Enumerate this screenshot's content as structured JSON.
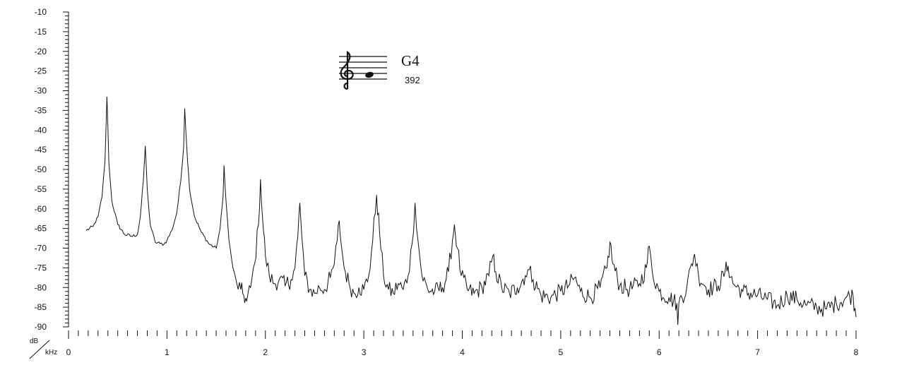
{
  "note": {
    "name": "G4",
    "frequency_hz": "392",
    "icon": "treble-clef-staff-icon"
  },
  "chart_data": {
    "type": "line",
    "title": "",
    "xlabel": "kHz",
    "ylabel": "dB",
    "xlim": [
      0,
      8
    ],
    "ylim": [
      -90,
      -10
    ],
    "x_tick_labels": [
      "0",
      "1",
      "2",
      "3",
      "4",
      "5",
      "6",
      "7",
      "8"
    ],
    "y_tick_labels": [
      "-10",
      "-15",
      "-20",
      "-25",
      "-30",
      "-35",
      "-40",
      "-45",
      "-50",
      "-55",
      "-60",
      "-65",
      "-70",
      "-75",
      "-80",
      "-85",
      "-90"
    ],
    "grid": false,
    "series": [
      {
        "name": "",
        "color": "#111111",
        "points": [
          [
            0.18,
            -65.5
          ],
          [
            0.25,
            -64.5
          ],
          [
            0.3,
            -62
          ],
          [
            0.34,
            -57
          ],
          [
            0.37,
            -48
          ],
          [
            0.39,
            -31.5
          ],
          [
            0.41,
            -48
          ],
          [
            0.44,
            -58
          ],
          [
            0.5,
            -64
          ],
          [
            0.57,
            -66.5
          ],
          [
            0.65,
            -67
          ],
          [
            0.7,
            -66.5
          ],
          [
            0.73,
            -62
          ],
          [
            0.76,
            -53
          ],
          [
            0.78,
            -44
          ],
          [
            0.8,
            -55
          ],
          [
            0.83,
            -64
          ],
          [
            0.88,
            -68.5
          ],
          [
            0.93,
            -68.8
          ],
          [
            0.97,
            -69
          ],
          [
            1.0,
            -68
          ],
          [
            1.05,
            -65.5
          ],
          [
            1.1,
            -61
          ],
          [
            1.14,
            -53
          ],
          [
            1.17,
            -44
          ],
          [
            1.18,
            -34.5
          ],
          [
            1.2,
            -44
          ],
          [
            1.23,
            -55
          ],
          [
            1.28,
            -62
          ],
          [
            1.35,
            -66
          ],
          [
            1.43,
            -69
          ],
          [
            1.5,
            -70
          ],
          [
            1.54,
            -65
          ],
          [
            1.57,
            -57
          ],
          [
            1.58,
            -49
          ],
          [
            1.6,
            -58
          ],
          [
            1.63,
            -68
          ],
          [
            1.67,
            -75
          ],
          [
            1.71,
            -79
          ],
          [
            1.75,
            -80.5
          ],
          [
            1.78,
            -82
          ],
          [
            1.81,
            -83.5
          ],
          [
            1.85,
            -80
          ],
          [
            1.89,
            -74
          ],
          [
            1.93,
            -64
          ],
          [
            1.95,
            -52.5
          ],
          [
            1.97,
            -62
          ],
          [
            2.0,
            -72
          ],
          [
            2.04,
            -77
          ],
          [
            2.09,
            -79
          ],
          [
            2.14,
            -78
          ],
          [
            2.2,
            -79.5
          ],
          [
            2.26,
            -78
          ],
          [
            2.3,
            -75
          ],
          [
            2.33,
            -67
          ],
          [
            2.35,
            -58.5
          ],
          [
            2.37,
            -67
          ],
          [
            2.4,
            -77
          ],
          [
            2.45,
            -80.5
          ],
          [
            2.5,
            -81.5
          ],
          [
            2.55,
            -80
          ],
          [
            2.6,
            -80.5
          ],
          [
            2.66,
            -77.5
          ],
          [
            2.7,
            -74
          ],
          [
            2.73,
            -68
          ],
          [
            2.75,
            -63
          ],
          [
            2.77,
            -69
          ],
          [
            2.8,
            -75
          ],
          [
            2.85,
            -79
          ],
          [
            2.9,
            -81.5
          ],
          [
            2.95,
            -80
          ],
          [
            3.0,
            -80.5
          ],
          [
            3.05,
            -77
          ],
          [
            3.09,
            -68
          ],
          [
            3.13,
            -56.5
          ],
          [
            3.16,
            -66
          ],
          [
            3.2,
            -77
          ],
          [
            3.25,
            -80.5
          ],
          [
            3.3,
            -81.5
          ],
          [
            3.35,
            -79
          ],
          [
            3.4,
            -80.5
          ],
          [
            3.45,
            -77
          ],
          [
            3.49,
            -69
          ],
          [
            3.52,
            -58.5
          ],
          [
            3.55,
            -68
          ],
          [
            3.59,
            -77
          ],
          [
            3.65,
            -80.5
          ],
          [
            3.72,
            -81
          ],
          [
            3.8,
            -80
          ],
          [
            3.86,
            -76
          ],
          [
            3.9,
            -68
          ],
          [
            3.92,
            -64
          ],
          [
            3.95,
            -70
          ],
          [
            3.99,
            -77
          ],
          [
            4.05,
            -80.5
          ],
          [
            4.12,
            -81.5
          ],
          [
            4.2,
            -80
          ],
          [
            4.27,
            -77
          ],
          [
            4.31,
            -72
          ],
          [
            4.34,
            -76
          ],
          [
            4.4,
            -80
          ],
          [
            4.48,
            -81.5
          ],
          [
            4.56,
            -80
          ],
          [
            4.64,
            -77
          ],
          [
            4.68,
            -75.5
          ],
          [
            4.72,
            -78
          ],
          [
            4.8,
            -82
          ],
          [
            4.9,
            -82.5
          ],
          [
            5.0,
            -81
          ],
          [
            5.08,
            -79.5
          ],
          [
            5.14,
            -77.5
          ],
          [
            5.2,
            -81
          ],
          [
            5.3,
            -82.5
          ],
          [
            5.4,
            -80
          ],
          [
            5.47,
            -75
          ],
          [
            5.5,
            -68.5
          ],
          [
            5.53,
            -74
          ],
          [
            5.6,
            -79.5
          ],
          [
            5.7,
            -80.5
          ],
          [
            5.8,
            -79
          ],
          [
            5.87,
            -75
          ],
          [
            5.9,
            -69.5
          ],
          [
            5.93,
            -76
          ],
          [
            6.0,
            -81
          ],
          [
            6.1,
            -82.5
          ],
          [
            6.18,
            -84
          ],
          [
            6.19,
            -89.5
          ],
          [
            6.2,
            -84
          ],
          [
            6.28,
            -80
          ],
          [
            6.33,
            -74
          ],
          [
            6.36,
            -71.5
          ],
          [
            6.4,
            -77
          ],
          [
            6.5,
            -80.5
          ],
          [
            6.6,
            -79.5
          ],
          [
            6.67,
            -76
          ],
          [
            6.7,
            -74.5
          ],
          [
            6.75,
            -79
          ],
          [
            6.85,
            -81
          ],
          [
            7.0,
            -82
          ],
          [
            7.1,
            -83
          ],
          [
            7.2,
            -84.5
          ],
          [
            7.3,
            -82
          ],
          [
            7.4,
            -83
          ],
          [
            7.5,
            -84.5
          ],
          [
            7.6,
            -85
          ],
          [
            7.7,
            -85.5
          ],
          [
            7.8,
            -84
          ],
          [
            7.9,
            -82.5
          ],
          [
            7.97,
            -82
          ],
          [
            8.0,
            -87.5
          ]
        ]
      }
    ]
  }
}
